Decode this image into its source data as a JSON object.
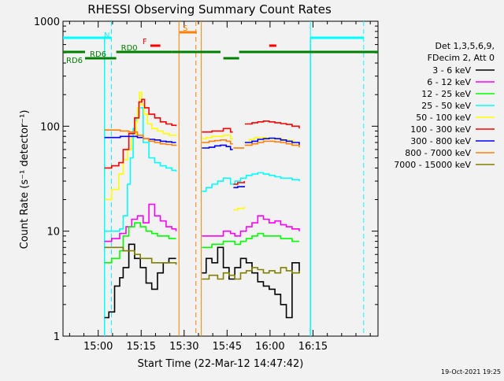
{
  "chart_data": {
    "type": "line",
    "title": "RHESSI Observing Summary Count Rates",
    "xlabel": "Start Time (22-Mar-12 14:47:42)",
    "ylabel": "Count Rate (s⁻¹ detector⁻¹)",
    "yscale": "log",
    "ylim": [
      1,
      1000
    ],
    "xlim_minutes": [
      0,
      110
    ],
    "x_ticks": [
      {
        "minute": 12.3,
        "label": "15:00"
      },
      {
        "minute": 27.3,
        "label": "15:15"
      },
      {
        "minute": 42.3,
        "label": "15:30"
      },
      {
        "minute": 57.3,
        "label": "15:45"
      },
      {
        "minute": 72.3,
        "label": "16:00"
      },
      {
        "minute": 87.3,
        "label": "16:15"
      }
    ],
    "y_ticks": [
      {
        "value": 1,
        "label": "1"
      },
      {
        "value": 10,
        "label": "10"
      },
      {
        "value": 100,
        "label": "100"
      },
      {
        "value": 1000,
        "label": "1000"
      }
    ],
    "legend_header": [
      "Det 1,3,5,6,9,",
      "FDecim 2, Att 0"
    ],
    "footer_date": "19-Oct-2021 19:25",
    "grid": false,
    "legend_position": "right",
    "series": [
      {
        "name": "3 - 6 keV",
        "color": "#000000",
        "segments": [
          {
            "x": [
              14.5,
              16,
              18,
              19.8,
              21,
              23,
              25,
              27,
              29,
              31,
              33,
              35,
              37,
              39.5
            ],
            "y": [
              1.5,
              1.7,
              3,
              3.6,
              4.5,
              7.5,
              5.5,
              4.5,
              3.2,
              2.8,
              4,
              5,
              5.5,
              5.5
            ]
          },
          {
            "x": [
              48.5,
              50,
              52,
              54,
              56,
              58,
              60,
              62,
              64,
              66,
              68,
              70,
              72,
              74,
              76,
              78,
              80,
              82.5
            ],
            "y": [
              4,
              5.5,
              5,
              7,
              4.5,
              3.5,
              4.5,
              5.5,
              5,
              4,
              3.3,
              3,
              2.8,
              2.5,
              2,
              1.5,
              5,
              4
            ]
          }
        ]
      },
      {
        "name": "6 - 12 keV",
        "color": "#ff00ff",
        "segments": [
          {
            "x": [
              14.5,
              17,
              19.8,
              22,
              24,
              26,
              28,
              30,
              32,
              34,
              36,
              38,
              39.5
            ],
            "y": [
              8,
              8.5,
              9.5,
              11,
              13,
              14,
              12,
              18,
              14,
              12.5,
              11,
              10.5,
              10
            ]
          },
          {
            "x": [
              48.5,
              52,
              56,
              58.5,
              60,
              62,
              64,
              66,
              68,
              70,
              72,
              74,
              76,
              78,
              80,
              82.5
            ],
            "y": [
              9,
              9,
              10,
              9.5,
              9,
              10,
              11,
              12,
              14,
              13,
              12,
              12.5,
              11.5,
              11,
              10.5,
              10
            ]
          }
        ]
      },
      {
        "name": "12 - 25 keV",
        "color": "#00ff00",
        "segments": [
          {
            "x": [
              14.5,
              17,
              19.8,
              21,
              23,
              25,
              27,
              29,
              31,
              33,
              35,
              37,
              39.5
            ],
            "y": [
              5,
              5.5,
              6.5,
              9,
              11,
              12,
              11,
              10,
              9.5,
              9,
              9,
              8.5,
              8.5
            ]
          },
          {
            "x": [
              48.5,
              52,
              56,
              58.5,
              60,
              62,
              64,
              66,
              68,
              70,
              72,
              74,
              76,
              78,
              80,
              82.5
            ],
            "y": [
              7,
              7.5,
              8,
              8,
              7.5,
              8,
              8.5,
              9,
              9.5,
              9,
              9,
              9,
              8.5,
              8.5,
              8,
              8
            ]
          }
        ]
      },
      {
        "name": "25 - 50 keV",
        "color": "#00ffff",
        "segments": [
          {
            "x": [
              14.5,
              17,
              19.8,
              21,
              22.5,
              23.5,
              24.5,
              25.5,
              26.5,
              28,
              30,
              32,
              34,
              36,
              38,
              39.5
            ],
            "y": [
              10,
              10,
              10.5,
              14,
              28,
              50,
              95,
              120,
              150,
              70,
              50,
              45,
              42,
              40,
              38,
              37
            ]
          },
          {
            "x": [
              48.5,
              50,
              52,
              54,
              56,
              58.5,
              60,
              62,
              64,
              66,
              68,
              70,
              72,
              74,
              76,
              78,
              80,
              82.5
            ],
            "y": [
              24,
              26,
              28,
              30,
              32,
              28,
              30,
              32,
              34,
              35,
              36,
              35,
              34,
              33,
              32,
              32,
              31,
              30
            ]
          }
        ]
      },
      {
        "name": "50 - 100 keV",
        "color": "#ffff00",
        "segments": [
          {
            "x": [
              14.5,
              17,
              19.5,
              21,
              22.5,
              24,
              25.5,
              26,
              26.7,
              27.5,
              28.3,
              29.5,
              31,
              33,
              35,
              37,
              39.5
            ],
            "y": [
              20,
              25,
              35,
              48,
              60,
              80,
              110,
              150,
              210,
              160,
              130,
              105,
              95,
              90,
              85,
              82,
              80
            ]
          },
          {
            "x": [
              48.5,
              50,
              52,
              54,
              56,
              58.5,
              59.3
            ],
            "y": [
              76,
              78,
              80,
              80,
              82,
              76,
              76
            ]
          },
          {
            "x": [
              59.5,
              61,
              63.3
            ],
            "y": [
              16,
              16.5,
              17
            ]
          },
          {
            "x": [
              63.5,
              65,
              67,
              69,
              71,
              73,
              75,
              77,
              79,
              80.5,
              82.5
            ],
            "y": [
              70,
              75,
              78,
              78,
              77,
              76,
              76,
              74,
              73,
              70,
              68
            ]
          }
        ]
      },
      {
        "name": "100 - 300 keV",
        "color": "#ff0000",
        "segments": [
          {
            "x": [
              14.5,
              17,
              19.5,
              21,
              23,
              25,
              26.5,
              27.5,
              28.5,
              30,
              32,
              34,
              36,
              38,
              39.5
            ],
            "y": [
              40,
              42,
              45,
              60,
              85,
              120,
              170,
              180,
              150,
              130,
              120,
              110,
              105,
              102,
              100
            ]
          },
          {
            "x": [
              48.5,
              52,
              56,
              58.5,
              59.3
            ],
            "y": [
              88,
              90,
              95,
              88,
              88
            ]
          },
          {
            "x": [
              59.5,
              61,
              63.3
            ],
            "y": [
              28,
              29,
              30
            ]
          },
          {
            "x": [
              63.5,
              66,
              68,
              70,
              72,
              74,
              76,
              78,
              80,
              82.5
            ],
            "y": [
              105,
              108,
              110,
              112,
              110,
              108,
              106,
              104,
              100,
              95
            ]
          }
        ]
      },
      {
        "name": "300 - 800 keV",
        "color": "#0000ff",
        "segments": [
          {
            "x": [
              14.5,
              17,
              20,
              23,
              26,
              28,
              30,
              32,
              34,
              36,
              38,
              39.5
            ],
            "y": [
              78,
              78,
              80,
              80,
              78,
              76,
              75,
              74,
              72,
              71,
              70,
              70
            ]
          },
          {
            "x": [
              48.5,
              51,
              53,
              55,
              57,
              58.5,
              59.3
            ],
            "y": [
              62,
              63,
              65,
              66,
              64,
              60,
              60
            ]
          },
          {
            "x": [
              59.5,
              61,
              63.3
            ],
            "y": [
              26,
              26.5,
              27
            ]
          },
          {
            "x": [
              63.5,
              66,
              68,
              70,
              72,
              74,
              76,
              78,
              80,
              82.5
            ],
            "y": [
              70,
              72,
              75,
              76,
              77,
              76,
              74,
              72,
              70,
              66
            ]
          }
        ]
      },
      {
        "name": "800 - 7000 keV",
        "color": "#ff8000",
        "segments": [
          {
            "x": [
              14.5,
              17,
              20,
              23,
              26,
              28,
              30,
              32,
              34,
              36,
              38,
              39.5
            ],
            "y": [
              92,
              92,
              90,
              88,
              82,
              76,
              72,
              70,
              68,
              67,
              66,
              65
            ]
          },
          {
            "x": [
              48.5,
              51,
              53,
              55,
              57,
              58.5,
              59.3
            ],
            "y": [
              70,
              72,
              73,
              74,
              72,
              68,
              68
            ]
          },
          {
            "x": [
              59.5,
              61,
              63.3
            ],
            "y": [
              62,
              62,
              62
            ]
          },
          {
            "x": [
              63.5,
              66,
              68,
              70,
              72,
              74,
              76,
              78,
              80,
              82.5
            ],
            "y": [
              66,
              68,
              70,
              72,
              72,
              71,
              70,
              68,
              66,
              63
            ]
          }
        ]
      },
      {
        "name": "7000 - 15000 keV",
        "color": "#808000",
        "segments": [
          {
            "x": [
              14.5,
              17,
              19.5,
              21,
              23,
              25,
              27,
              29,
              31,
              33,
              35,
              37,
              39.5
            ],
            "y": [
              7,
              7,
              7,
              6.5,
              6.5,
              6,
              5.5,
              5.5,
              5,
              5,
              5,
              5,
              4.8
            ]
          },
          {
            "x": [
              48.5,
              51,
              54,
              56,
              58,
              60,
              62,
              64,
              66,
              68,
              70,
              72,
              74,
              76,
              78,
              80,
              82.5
            ],
            "y": [
              3.5,
              3.8,
              3.5,
              4,
              3.8,
              3.5,
              4,
              4.2,
              4.5,
              4.3,
              4,
              4.2,
              4,
              4.5,
              4.2,
              4,
              4.2
            ]
          }
        ]
      }
    ],
    "annotations": {
      "bars": [
        {
          "label": "RD6",
          "color": "#008000",
          "from": 0,
          "to": 7.7
        },
        {
          "label": "RD6",
          "color": "#008000",
          "from": 7.7,
          "to": 18.6
        },
        {
          "label": "RD0",
          "color": "#008000",
          "from": 18.6,
          "to": 38
        },
        {
          "label": "",
          "color": "#008000",
          "from": 38,
          "to": 55
        },
        {
          "label": "",
          "color": "#008000",
          "from": 56,
          "to": 61.5
        },
        {
          "label": "",
          "color": "#008000",
          "from": 61.5,
          "to": 110
        },
        {
          "label": "N",
          "color": "#00ffff",
          "from": 0,
          "to": 16.9
        },
        {
          "label": "",
          "color": "#00ffff",
          "from": 86.5,
          "to": 105
        },
        {
          "label": "F",
          "color": "#ff0000",
          "from": 30.5,
          "to": 34
        },
        {
          "label": "",
          "color": "#ff0000",
          "from": 72,
          "to": 74.5
        },
        {
          "label": "S",
          "color": "#ff8000",
          "from": 40.7,
          "to": 46.7
        }
      ],
      "vlines": [
        {
          "minute": 16.9,
          "color": "#00ffff",
          "dashed": true
        },
        {
          "minute": 40.5,
          "color": "#ff8000",
          "dashed": false
        },
        {
          "minute": 46.4,
          "color": "#ff8000",
          "dashed": true
        },
        {
          "minute": 48.3,
          "color": "#ff8000",
          "dashed": false
        },
        {
          "minute": 86.4,
          "color": "#00ffff",
          "dashed": false
        },
        {
          "minute": 105,
          "color": "#00ffff",
          "dashed": true
        }
      ],
      "gaps": [
        {
          "from": 0,
          "to": 14.5,
          "color": "#00ffff"
        },
        {
          "from": 82.6,
          "to": 86.4,
          "color": "#00ffff"
        }
      ]
    }
  }
}
